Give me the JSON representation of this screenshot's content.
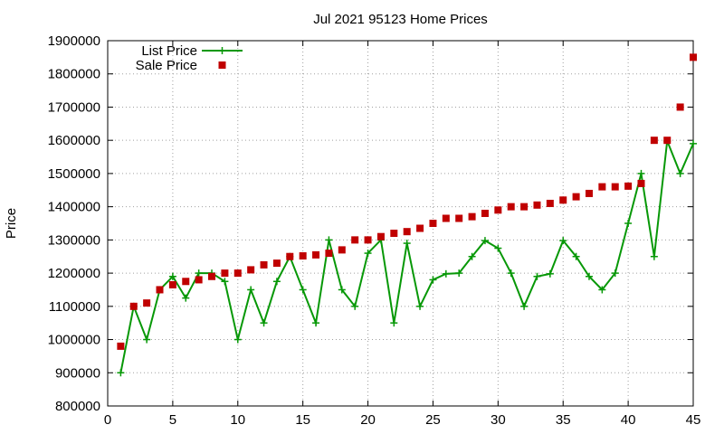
{
  "chart_data": {
    "type": "line",
    "title": "Jul 2021 95123 Home Prices",
    "xlabel": "",
    "ylabel": "Price",
    "xlim": [
      0,
      45
    ],
    "ylim": [
      800000,
      1900000
    ],
    "x_ticks": [
      0,
      5,
      10,
      15,
      20,
      25,
      30,
      35,
      40,
      45
    ],
    "y_ticks": [
      800000,
      900000,
      1000000,
      1100000,
      1200000,
      1300000,
      1400000,
      1500000,
      1600000,
      1700000,
      1800000,
      1900000
    ],
    "grid": true,
    "legend_position": "top-left",
    "series": [
      {
        "name": "List Price",
        "style": "line-with-plus-markers",
        "color": "#079807",
        "points": [
          [
            1,
            900000
          ],
          [
            2,
            1100000
          ],
          [
            3,
            1000000
          ],
          [
            4,
            1150000
          ],
          [
            5,
            1190000
          ],
          [
            6,
            1125000
          ],
          [
            7,
            1200000
          ],
          [
            8,
            1200000
          ],
          [
            9,
            1175000
          ],
          [
            10,
            1000000
          ],
          [
            11,
            1150000
          ],
          [
            12,
            1050000
          ],
          [
            13,
            1175000
          ],
          [
            14,
            1250000
          ],
          [
            15,
            1150000
          ],
          [
            16,
            1050000
          ],
          [
            17,
            1300000
          ],
          [
            18,
            1150000
          ],
          [
            19,
            1100000
          ],
          [
            20,
            1260000
          ],
          [
            21,
            1300000
          ],
          [
            22,
            1050000
          ],
          [
            23,
            1290000
          ],
          [
            24,
            1100000
          ],
          [
            25,
            1180000
          ],
          [
            26,
            1198000
          ],
          [
            27,
            1200000
          ],
          [
            28,
            1250000
          ],
          [
            29,
            1298000
          ],
          [
            30,
            1275000
          ],
          [
            31,
            1200000
          ],
          [
            32,
            1100000
          ],
          [
            33,
            1190000
          ],
          [
            34,
            1198000
          ],
          [
            35,
            1298000
          ],
          [
            36,
            1250000
          ],
          [
            37,
            1190000
          ],
          [
            38,
            1150000
          ],
          [
            39,
            1200000
          ],
          [
            40,
            1350000
          ],
          [
            41,
            1500000
          ],
          [
            42,
            1250000
          ],
          [
            43,
            1598000
          ],
          [
            44,
            1500000
          ],
          [
            45,
            1590000
          ]
        ]
      },
      {
        "name": "Sale Price",
        "style": "square-markers",
        "color": "#c00000",
        "points": [
          [
            1,
            980000
          ],
          [
            2,
            1100000
          ],
          [
            3,
            1110000
          ],
          [
            4,
            1150000
          ],
          [
            5,
            1165000
          ],
          [
            6,
            1175000
          ],
          [
            7,
            1180000
          ],
          [
            8,
            1190000
          ],
          [
            9,
            1200000
          ],
          [
            10,
            1200000
          ],
          [
            11,
            1210000
          ],
          [
            12,
            1225000
          ],
          [
            13,
            1230000
          ],
          [
            14,
            1250000
          ],
          [
            15,
            1252000
          ],
          [
            16,
            1255000
          ],
          [
            17,
            1260000
          ],
          [
            18,
            1270000
          ],
          [
            19,
            1300000
          ],
          [
            20,
            1300000
          ],
          [
            21,
            1310000
          ],
          [
            22,
            1320000
          ],
          [
            23,
            1325000
          ],
          [
            24,
            1335000
          ],
          [
            25,
            1350000
          ],
          [
            26,
            1365000
          ],
          [
            27,
            1365000
          ],
          [
            28,
            1370000
          ],
          [
            29,
            1380000
          ],
          [
            30,
            1390000
          ],
          [
            31,
            1400000
          ],
          [
            32,
            1400000
          ],
          [
            33,
            1405000
          ],
          [
            34,
            1410000
          ],
          [
            35,
            1420000
          ],
          [
            36,
            1430000
          ],
          [
            37,
            1440000
          ],
          [
            38,
            1460000
          ],
          [
            39,
            1460000
          ],
          [
            40,
            1462000
          ],
          [
            41,
            1470000
          ],
          [
            42,
            1600000
          ],
          [
            43,
            1600000
          ],
          [
            44,
            1700000
          ],
          [
            45,
            1850000
          ]
        ]
      }
    ]
  }
}
